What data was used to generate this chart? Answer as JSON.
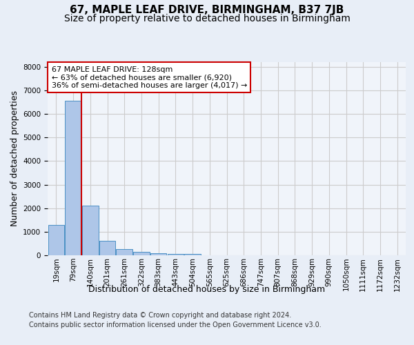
{
  "title": "67, MAPLE LEAF DRIVE, BIRMINGHAM, B37 7JB",
  "subtitle": "Size of property relative to detached houses in Birmingham",
  "xlabel": "Distribution of detached houses by size in Birmingham",
  "ylabel": "Number of detached properties",
  "footer_line1": "Contains HM Land Registry data © Crown copyright and database right 2024.",
  "footer_line2": "Contains public sector information licensed under the Open Government Licence v3.0.",
  "annotation_title": "67 MAPLE LEAF DRIVE: 128sqm",
  "annotation_line2": "← 63% of detached houses are smaller (6,920)",
  "annotation_line3": "36% of semi-detached houses are larger (4,017) →",
  "property_size_sqm": 128,
  "bar_labels": [
    "19sqm",
    "79sqm",
    "140sqm",
    "201sqm",
    "261sqm",
    "322sqm",
    "383sqm",
    "443sqm",
    "504sqm",
    "565sqm",
    "625sqm",
    "686sqm",
    "747sqm",
    "807sqm",
    "868sqm",
    "929sqm",
    "990sqm",
    "1050sqm",
    "1111sqm",
    "1172sqm",
    "1232sqm"
  ],
  "bar_values": [
    1300,
    6550,
    2100,
    620,
    270,
    140,
    100,
    60,
    60,
    0,
    0,
    0,
    0,
    0,
    0,
    0,
    0,
    0,
    0,
    0,
    0
  ],
  "bar_color": "#aec6e8",
  "bar_edge_color": "#4a90c4",
  "vline_color": "#cc0000",
  "vline_x": 1.5,
  "ylim": [
    0,
    8200
  ],
  "yticks": [
    0,
    1000,
    2000,
    3000,
    4000,
    5000,
    6000,
    7000,
    8000
  ],
  "grid_color": "#cccccc",
  "bg_color": "#e8eef7",
  "plot_bg_color": "#f0f4fa",
  "annotation_box_color": "#ffffff",
  "annotation_box_edge": "#cc0000",
  "title_fontsize": 11,
  "subtitle_fontsize": 10,
  "axis_label_fontsize": 9,
  "tick_fontsize": 7.5,
  "annotation_fontsize": 8
}
